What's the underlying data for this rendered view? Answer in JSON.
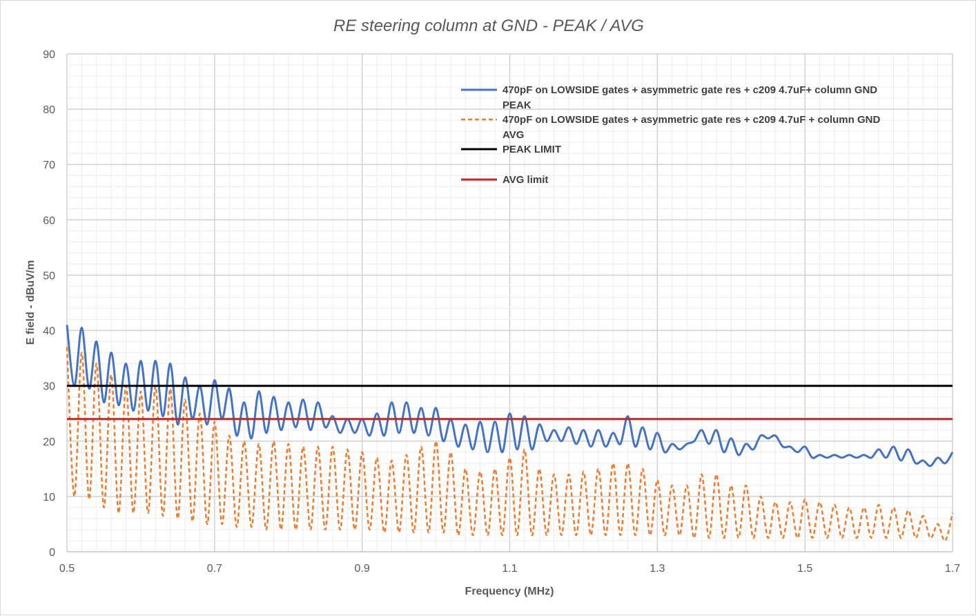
{
  "chart_data": {
    "type": "line",
    "title": "RE steering column at GND - PEAK / AVG",
    "xlabel": "Frequency (MHz)",
    "ylabel": "E field - dBuV/m",
    "xlim": [
      0.5,
      1.7
    ],
    "ylim": [
      0,
      90
    ],
    "x_ticks": [
      "0.5",
      "0.7",
      "0.9",
      "1.1",
      "1.3",
      "1.5",
      "1.7"
    ],
    "y_ticks": [
      "0",
      "10",
      "20",
      "30",
      "40",
      "50",
      "60",
      "70",
      "80",
      "90"
    ],
    "grid": "major and minor",
    "legend_position": "top-right",
    "series": [
      {
        "name": "470pF on LOWSIDE gates + asymmetric gate res + c209 4.7uF+ column GND PEAK",
        "legend_lines": [
          "470pF on LOWSIDE gates + asymmetric gate res + c209 4.7uF+ column GND",
          "PEAK"
        ],
        "color": "#4472c4",
        "style": "solid",
        "x": [
          0.5,
          0.51,
          0.52,
          0.53,
          0.54,
          0.55,
          0.56,
          0.57,
          0.58,
          0.59,
          0.6,
          0.61,
          0.62,
          0.63,
          0.64,
          0.65,
          0.66,
          0.67,
          0.68,
          0.69,
          0.7,
          0.71,
          0.72,
          0.73,
          0.74,
          0.75,
          0.76,
          0.77,
          0.78,
          0.79,
          0.8,
          0.81,
          0.82,
          0.83,
          0.84,
          0.85,
          0.86,
          0.87,
          0.88,
          0.89,
          0.9,
          0.91,
          0.92,
          0.93,
          0.94,
          0.95,
          0.96,
          0.97,
          0.98,
          0.99,
          1.0,
          1.01,
          1.02,
          1.03,
          1.04,
          1.05,
          1.06,
          1.07,
          1.08,
          1.09,
          1.1,
          1.11,
          1.12,
          1.13,
          1.14,
          1.15,
          1.16,
          1.17,
          1.18,
          1.19,
          1.2,
          1.21,
          1.22,
          1.23,
          1.24,
          1.25,
          1.26,
          1.27,
          1.28,
          1.29,
          1.3,
          1.31,
          1.32,
          1.33,
          1.34,
          1.35,
          1.36,
          1.37,
          1.38,
          1.39,
          1.4,
          1.41,
          1.42,
          1.43,
          1.44,
          1.45,
          1.46,
          1.47,
          1.48,
          1.49,
          1.5,
          1.51,
          1.52,
          1.53,
          1.54,
          1.55,
          1.56,
          1.57,
          1.58,
          1.59,
          1.6,
          1.61,
          1.62,
          1.63,
          1.64,
          1.65,
          1.66,
          1.67,
          1.68,
          1.69,
          1.7
        ],
        "values": [
          41,
          30,
          40.5,
          29.5,
          38,
          27,
          36,
          26.5,
          34,
          25.5,
          34.5,
          25.5,
          34.5,
          24.5,
          34,
          23,
          31.5,
          24,
          30,
          23,
          31,
          24,
          29.5,
          21,
          27,
          20.5,
          29,
          21.5,
          28,
          22,
          27,
          22.5,
          27.5,
          22,
          27,
          22.5,
          24.5,
          21.5,
          24,
          21.5,
          24,
          21,
          25,
          21,
          27,
          21.5,
          27,
          21.5,
          26,
          21,
          26,
          20,
          24,
          19,
          23,
          18.5,
          23.5,
          18,
          23.5,
          18,
          25,
          18.5,
          24.5,
          18.5,
          23,
          20,
          22,
          20,
          22.5,
          19.5,
          22,
          19,
          22,
          19,
          21.5,
          19.5,
          24.5,
          19,
          22.5,
          18.5,
          21.5,
          18,
          19.5,
          18.5,
          19.5,
          20,
          22,
          19.5,
          22,
          18,
          20.5,
          17.5,
          19.5,
          18.5,
          21,
          20.5,
          21,
          19,
          19,
          18,
          19,
          17,
          17.5,
          17,
          17.5,
          17,
          17.5,
          17,
          17.5,
          17,
          18.5,
          17,
          19,
          16.5,
          18.5,
          16,
          16.5,
          15.5,
          17,
          16,
          18
        ]
      },
      {
        "name": "470pF on LOWSIDE gates + asymmetric gate res + c209 4.7uF + column GND AVG",
        "legend_lines": [
          "470pF on LOWSIDE gates + asymmetric gate res + c209 4.7uF + column GND",
          "AVG"
        ],
        "color": "#ed7d31",
        "style": "dashed",
        "x": [
          0.5,
          0.51,
          0.52,
          0.53,
          0.54,
          0.55,
          0.56,
          0.57,
          0.58,
          0.59,
          0.6,
          0.61,
          0.62,
          0.63,
          0.64,
          0.65,
          0.66,
          0.67,
          0.68,
          0.69,
          0.7,
          0.71,
          0.72,
          0.73,
          0.74,
          0.75,
          0.76,
          0.77,
          0.78,
          0.79,
          0.8,
          0.81,
          0.82,
          0.83,
          0.84,
          0.85,
          0.86,
          0.87,
          0.88,
          0.89,
          0.9,
          0.91,
          0.92,
          0.93,
          0.94,
          0.95,
          0.96,
          0.97,
          0.98,
          0.99,
          1.0,
          1.01,
          1.02,
          1.03,
          1.04,
          1.05,
          1.06,
          1.07,
          1.08,
          1.09,
          1.1,
          1.11,
          1.12,
          1.13,
          1.14,
          1.15,
          1.16,
          1.17,
          1.18,
          1.19,
          1.2,
          1.21,
          1.22,
          1.23,
          1.24,
          1.25,
          1.26,
          1.27,
          1.28,
          1.29,
          1.3,
          1.31,
          1.32,
          1.33,
          1.34,
          1.35,
          1.36,
          1.37,
          1.38,
          1.39,
          1.4,
          1.41,
          1.42,
          1.43,
          1.44,
          1.45,
          1.46,
          1.47,
          1.48,
          1.49,
          1.5,
          1.51,
          1.52,
          1.53,
          1.54,
          1.55,
          1.56,
          1.57,
          1.58,
          1.59,
          1.6,
          1.61,
          1.62,
          1.63,
          1.64,
          1.65,
          1.66,
          1.67,
          1.68,
          1.69,
          1.7
        ],
        "values": [
          37,
          10,
          36,
          9.5,
          34,
          8,
          32,
          7,
          30,
          7,
          29,
          7,
          30,
          6.5,
          29.5,
          6,
          27.5,
          5.5,
          25,
          5,
          23.5,
          5,
          21,
          4.5,
          20,
          4.5,
          19.5,
          4,
          20,
          4,
          19.5,
          4,
          19,
          4,
          19,
          4,
          19,
          4,
          18.5,
          4,
          18,
          4,
          17,
          3.5,
          16.5,
          3.5,
          17.5,
          3.5,
          19,
          3.5,
          20,
          3.5,
          18,
          3,
          15,
          3,
          14.5,
          3,
          15,
          3,
          17,
          3,
          18.5,
          3,
          15,
          3,
          14,
          3,
          14,
          3,
          14.5,
          3,
          15,
          3,
          16,
          3,
          16,
          3,
          15,
          3,
          13,
          3,
          12,
          3,
          12,
          2.5,
          14,
          2.5,
          14,
          2.5,
          12,
          2.5,
          12,
          2.5,
          10,
          2.5,
          9,
          2.5,
          9,
          2.5,
          9.5,
          2.5,
          9,
          2.5,
          8.5,
          2.5,
          8,
          2.5,
          8,
          2.5,
          8.5,
          2.5,
          8,
          2.5,
          7.5,
          2.5,
          6.5,
          2.5,
          5,
          2,
          7
        ]
      },
      {
        "name": "PEAK LIMIT",
        "legend_lines": [
          "PEAK LIMIT"
        ],
        "color": "#000000",
        "style": "solid",
        "x": [
          0.5,
          1.7
        ],
        "values": [
          30,
          30
        ]
      },
      {
        "name": "AVG limit",
        "legend_lines": [
          "AVG limit"
        ],
        "color": "#e31a1c",
        "style": "solid",
        "x": [
          0.5,
          1.7
        ],
        "values": [
          24,
          24
        ]
      }
    ]
  }
}
